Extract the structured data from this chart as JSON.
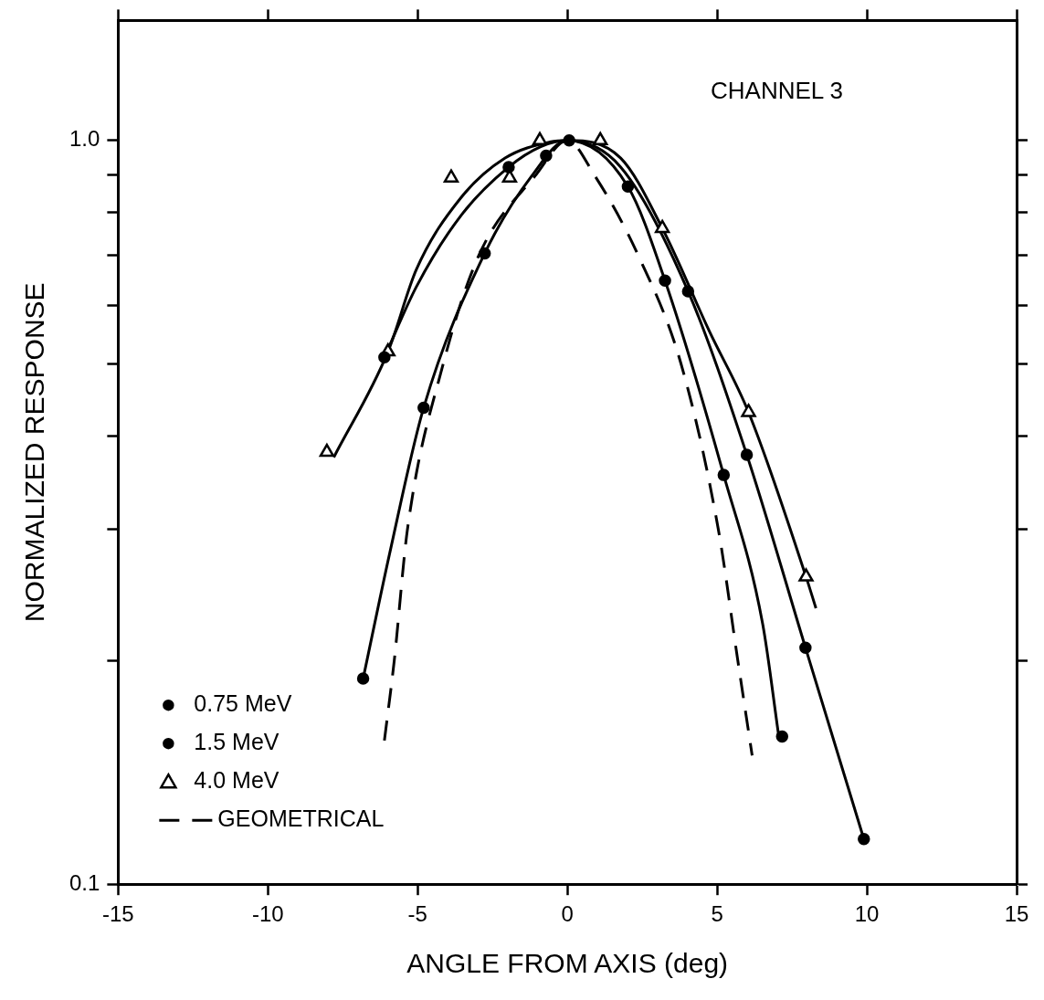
{
  "chart_data": {
    "type": "scatter",
    "xlabel": "ANGLE FROM AXIS (deg)",
    "ylabel": "NORMALIZED RESPONSE",
    "annotations": [
      "CHANNEL 3"
    ],
    "xlim": [
      -15,
      15
    ],
    "xticks": [
      -15,
      -10,
      -5,
      0,
      5,
      10,
      15
    ],
    "log": "y",
    "ylim": [
      0.1,
      1.45
    ],
    "yticks": [
      0.1,
      {
        "value": 0.2,
        "label": null
      },
      {
        "value": 0.3,
        "label": null
      },
      {
        "value": 0.4,
        "label": null
      },
      {
        "value": 0.5,
        "label": null
      },
      {
        "value": 0.6,
        "label": null
      },
      {
        "value": 0.7,
        "label": null
      },
      {
        "value": 0.8,
        "label": null
      },
      {
        "value": 0.9,
        "label": null
      },
      {
        "value": 1,
        "label": "1.0"
      }
    ],
    "grid": false,
    "legend": "bottom left",
    "series": [
      {
        "name": "0.75 MeV",
        "type": "scatter",
        "color": "#000000",
        "marker": "circle",
        "x": [
          -6.82,
          -4.8,
          -2.76,
          -0.71,
          0.06,
          2.02,
          3.26,
          5.22,
          7.17
        ],
        "values": [
          0.189,
          0.437,
          0.705,
          0.954,
          null,
          0.867,
          0.648,
          0.355,
          0.158
        ]
      },
      {
        "name": "1.5 MeV",
        "type": "scatter",
        "color": "#000000",
        "marker": "circle",
        "x": [
          -6.11,
          -1.96,
          0.06,
          4.03,
          5.99,
          7.95,
          9.9
        ],
        "values": [
          0.511,
          0.921,
          1.0,
          0.627,
          0.378,
          0.208,
          0.115
        ]
      },
      {
        "name": "4.0 MeV",
        "type": "scatter",
        "color": "#000000",
        "marker": "triangle",
        "x": [
          -8.03,
          -5.99,
          -3.88,
          -1.93,
          -0.92,
          1.1,
          3.17,
          6.05,
          7.97
        ],
        "values": [
          0.381,
          0.52,
          0.891,
          0.891,
          1.0,
          1.0,
          0.762,
          0.431,
          0.259
        ]
      },
      {
        "name": "GEOMETRICAL",
        "type": "line",
        "color": "#000000",
        "line_style": "dashed",
        "x": [
          -6.11,
          -5.78,
          -5.34,
          -4.15,
          -2.96,
          -1.04,
          0,
          0.89,
          2.37,
          3.8,
          5.04,
          5.69,
          6.17
        ],
        "values": [
          0.156,
          0.2,
          0.3,
          0.5,
          0.7,
          0.9,
          1.0,
          0.9,
          0.7,
          0.5,
          0.3,
          0.2,
          0.149
        ]
      },
      {
        "type": "line",
        "color": "#000000",
        "line_style": "solid",
        "x": [
          -6.82,
          -5.93,
          -4.8,
          -2.76,
          -1.19,
          0,
          2.02,
          3.26,
          5.22,
          6.52,
          7.06
        ],
        "values": [
          0.189,
          0.279,
          0.437,
          0.705,
          0.896,
          1.0,
          0.867,
          0.648,
          0.355,
          0.224,
          0.158
        ]
      },
      {
        "type": "line",
        "color": "#000000",
        "line_style": "solid",
        "x": [
          -6.11,
          -5.04,
          -3.56,
          -1.96,
          -0.89,
          0,
          1.78,
          4.03,
          5.99,
          7.95,
          9.9
        ],
        "values": [
          0.511,
          0.636,
          0.792,
          0.921,
          0.981,
          1.0,
          0.921,
          0.627,
          0.378,
          0.208,
          0.115
        ]
      },
      {
        "type": "line",
        "color": "#000000",
        "line_style": "solid",
        "x": [
          -7.8,
          -5.99,
          -5.04,
          -3.56,
          -2.08,
          -0.59,
          0,
          1.78,
          3.17,
          4.74,
          6.05,
          7.97,
          8.3
        ],
        "values": [
          0.375,
          0.52,
          0.671,
          0.837,
          0.947,
          0.995,
          1.0,
          0.947,
          0.762,
          0.554,
          0.431,
          0.259,
          0.235
        ]
      }
    ]
  }
}
